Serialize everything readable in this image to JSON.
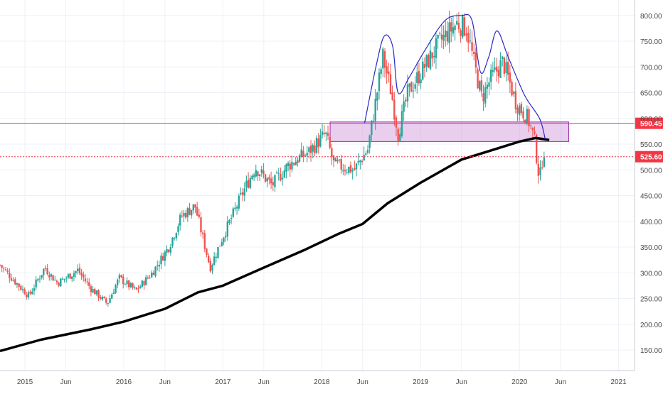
{
  "chart_data": {
    "type": "candlestick",
    "y_range": [
      110,
      830
    ],
    "y_ticks": [
      "150.00",
      "200.00",
      "250.00",
      "300.00",
      "350.00",
      "400.00",
      "450.00",
      "500.00",
      "550.00",
      "600.00",
      "650.00",
      "700.00",
      "750.00",
      "800.00"
    ],
    "x_range": [
      "2014-10-01",
      "2021-03-01"
    ],
    "x_ticks": [
      {
        "label": "2015",
        "date": "2015-01-01"
      },
      {
        "label": "Jun",
        "date": "2015-06-01"
      },
      {
        "label": "2016",
        "date": "2016-01-01"
      },
      {
        "label": "Jun",
        "date": "2016-06-01"
      },
      {
        "label": "2017",
        "date": "2017-01-01"
      },
      {
        "label": "Jun",
        "date": "2017-06-01"
      },
      {
        "label": "2018",
        "date": "2018-01-01"
      },
      {
        "label": "Jun",
        "date": "2018-06-01"
      },
      {
        "label": "2019",
        "date": "2019-01-01"
      },
      {
        "label": "Jun",
        "date": "2019-06-01"
      },
      {
        "label": "2020",
        "date": "2020-01-01"
      },
      {
        "label": "Jun",
        "date": "2020-06-01"
      },
      {
        "label": "2021",
        "date": "2021-01-01"
      }
    ],
    "price_path": [
      [
        "2014-10-01",
        315
      ],
      [
        "2014-12-01",
        280
      ],
      [
        "2015-01-15",
        255
      ],
      [
        "2015-03-15",
        310
      ],
      [
        "2015-05-01",
        280
      ],
      [
        "2015-07-15",
        305
      ],
      [
        "2015-09-01",
        270
      ],
      [
        "2015-11-01",
        240
      ],
      [
        "2015-12-15",
        290
      ],
      [
        "2016-02-15",
        265
      ],
      [
        "2016-04-15",
        300
      ],
      [
        "2016-06-15",
        350
      ],
      [
        "2016-08-01",
        410
      ],
      [
        "2016-09-20",
        430
      ],
      [
        "2016-11-15",
        310
      ],
      [
        "2017-01-01",
        370
      ],
      [
        "2017-03-15",
        455
      ],
      [
        "2017-05-01",
        505
      ],
      [
        "2017-07-01",
        470
      ],
      [
        "2017-09-01",
        510
      ],
      [
        "2017-11-15",
        535
      ],
      [
        "2018-01-15",
        570
      ],
      [
        "2018-02-15",
        510
      ],
      [
        "2018-05-01",
        500
      ],
      [
        "2018-06-20",
        540
      ],
      [
        "2018-08-15",
        720
      ],
      [
        "2018-09-15",
        650
      ],
      [
        "2018-10-10",
        570
      ],
      [
        "2018-11-15",
        650
      ],
      [
        "2019-01-15",
        700
      ],
      [
        "2019-03-15",
        750
      ],
      [
        "2019-05-15",
        785
      ],
      [
        "2019-06-20",
        775
      ],
      [
        "2019-07-20",
        700
      ],
      [
        "2019-08-15",
        640
      ],
      [
        "2019-09-15",
        675
      ],
      [
        "2019-11-01",
        710
      ],
      [
        "2019-12-20",
        630
      ],
      [
        "2020-02-01",
        600
      ],
      [
        "2020-02-25",
        560
      ],
      [
        "2020-03-15",
        480
      ],
      [
        "2020-03-31",
        540
      ],
      [
        "2020-04-05",
        525
      ]
    ],
    "moving_average": [
      [
        "2014-10-01",
        148
      ],
      [
        "2015-03-01",
        170
      ],
      [
        "2015-09-01",
        190
      ],
      [
        "2016-01-01",
        205
      ],
      [
        "2016-06-01",
        230
      ],
      [
        "2016-10-01",
        262
      ],
      [
        "2017-01-01",
        275
      ],
      [
        "2017-06-01",
        310
      ],
      [
        "2017-11-01",
        345
      ],
      [
        "2018-03-01",
        375
      ],
      [
        "2018-06-01",
        395
      ],
      [
        "2018-09-01",
        435
      ],
      [
        "2019-01-01",
        475
      ],
      [
        "2019-06-01",
        520
      ],
      [
        "2019-09-01",
        535
      ],
      [
        "2020-01-01",
        555
      ],
      [
        "2020-03-01",
        562
      ],
      [
        "2020-04-20",
        558
      ]
    ],
    "head_shoulders_outline": [
      [
        "2018-06-08",
        590
      ],
      [
        "2018-07-20",
        700
      ],
      [
        "2018-08-20",
        760
      ],
      [
        "2018-09-20",
        740
      ],
      [
        "2018-10-10",
        650
      ],
      [
        "2018-11-20",
        680
      ],
      [
        "2019-01-20",
        735
      ],
      [
        "2019-04-01",
        790
      ],
      [
        "2019-06-01",
        800
      ],
      [
        "2019-07-10",
        790
      ],
      [
        "2019-08-10",
        690
      ],
      [
        "2019-09-10",
        720
      ],
      [
        "2019-10-10",
        770
      ],
      [
        "2019-11-20",
        720
      ],
      [
        "2020-01-20",
        645
      ],
      [
        "2020-03-15",
        600
      ],
      [
        "2020-04-05",
        560
      ]
    ],
    "zone": {
      "from": "2018-02-01",
      "to": "2020-07-01",
      "low": 555,
      "high": 593
    },
    "lines": [
      {
        "price": 590.45,
        "label": "590.45",
        "style": "solid",
        "color": "#f23645"
      },
      {
        "price": 525.6,
        "label": "525.60",
        "style": "dotted",
        "color": "#f23645"
      }
    ],
    "colors": {
      "up": "#26a69a",
      "down": "#ef5350",
      "ma": "#000000",
      "outline": "#2929c7",
      "zone_fill": "#ce93d8",
      "zone_stroke": "#9c27b0",
      "grid": "#eef1f6",
      "axis_text": "#4a4a4a"
    }
  }
}
